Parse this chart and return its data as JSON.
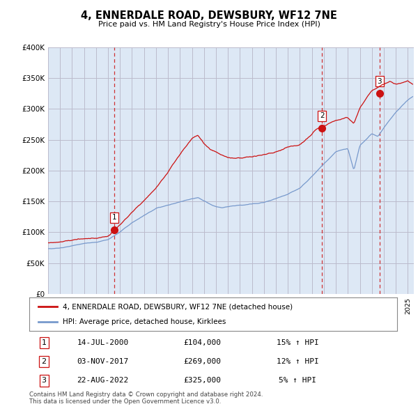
{
  "title": "4, ENNERDALE ROAD, DEWSBURY, WF12 7NE",
  "subtitle": "Price paid vs. HM Land Registry's House Price Index (HPI)",
  "ylabel_ticks": [
    "£0",
    "£50K",
    "£100K",
    "£150K",
    "£200K",
    "£250K",
    "£300K",
    "£350K",
    "£400K"
  ],
  "ytick_vals": [
    0,
    50000,
    100000,
    150000,
    200000,
    250000,
    300000,
    350000,
    400000
  ],
  "ylim": [
    0,
    400000
  ],
  "xlim_start": 1995.0,
  "xlim_end": 2025.5,
  "hpi_color": "#7799cc",
  "price_color": "#cc1111",
  "dashed_color": "#cc1111",
  "grid_color": "#bbbbcc",
  "chart_bg": "#dde8f5",
  "bg_color": "#ffffff",
  "transactions": [
    {
      "date_num": 2000.54,
      "price": 104000,
      "label": "1",
      "date_str": "14-JUL-2000"
    },
    {
      "date_num": 2017.84,
      "price": 269000,
      "label": "2",
      "date_str": "03-NOV-2017"
    },
    {
      "date_num": 2022.65,
      "price": 325000,
      "label": "3",
      "date_str": "22-AUG-2022"
    }
  ],
  "legend_label_red": "4, ENNERDALE ROAD, DEWSBURY, WF12 7NE (detached house)",
  "legend_label_blue": "HPI: Average price, detached house, Kirklees",
  "footnote": "Contains HM Land Registry data © Crown copyright and database right 2024.\nThis data is licensed under the Open Government Licence v3.0.",
  "table_rows": [
    {
      "num": "1",
      "date": "14-JUL-2000",
      "price": "£104,000",
      "pct": "15% ↑ HPI"
    },
    {
      "num": "2",
      "date": "03-NOV-2017",
      "price": "£269,000",
      "pct": "12% ↑ HPI"
    },
    {
      "num": "3",
      "date": "22-AUG-2022",
      "price": "£325,000",
      "pct": "5% ↑ HPI"
    }
  ]
}
